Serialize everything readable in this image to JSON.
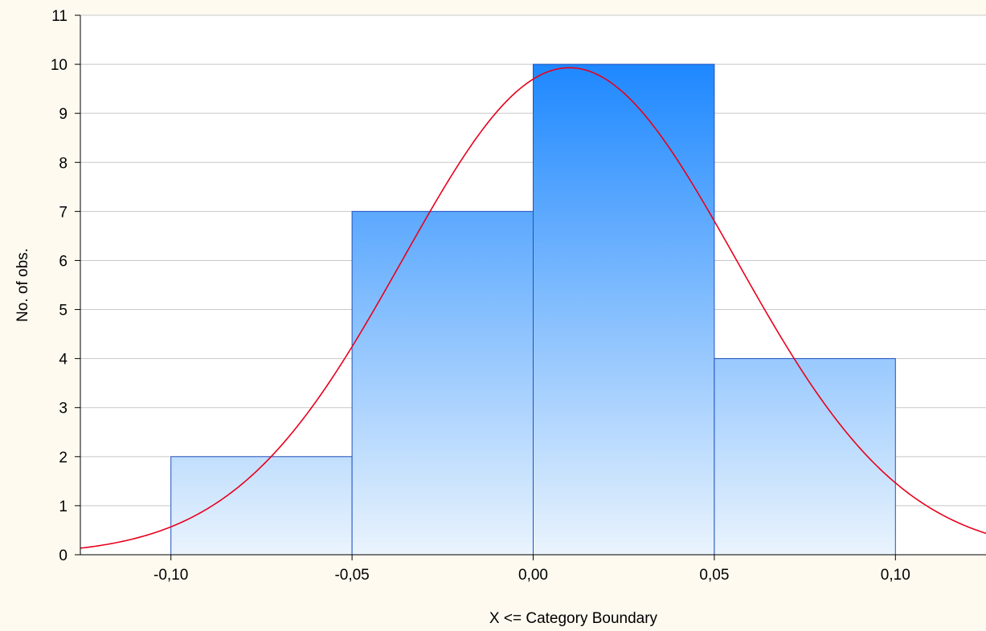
{
  "chart_data": {
    "type": "bar",
    "subtype": "histogram",
    "title": "",
    "xlabel": "X <= Category Boundary",
    "ylabel": "No. of obs.",
    "bins": [
      {
        "from": -0.1,
        "to": -0.05,
        "count": 2
      },
      {
        "from": -0.05,
        "to": 0.0,
        "count": 7
      },
      {
        "from": 0.0,
        "to": 0.05,
        "count": 10
      },
      {
        "from": 0.05,
        "to": 0.1,
        "count": 4
      }
    ],
    "xlim": [
      -0.125,
      0.125
    ],
    "ylim": [
      0,
      11
    ],
    "x_ticks": [
      -0.1,
      -0.05,
      0.0,
      0.05,
      0.1
    ],
    "x_tick_labels": [
      "-0,10",
      "-0,05",
      "0,00",
      "0,05",
      "0,10"
    ],
    "y_ticks": [
      0,
      1,
      2,
      3,
      4,
      5,
      6,
      7,
      8,
      9,
      10,
      11
    ],
    "y_tick_labels": [
      "0",
      "1",
      "2",
      "3",
      "4",
      "5",
      "6",
      "7",
      "8",
      "9",
      "10",
      "11"
    ],
    "grid": true,
    "normal_fit": {
      "mean": 0.01,
      "sd": 0.046,
      "peak": 9.93,
      "color": "#e8001c"
    },
    "colors": {
      "bar_top": "#1e88ff",
      "bar_bottom": "#eaf4fd",
      "bar_border": "#2050c0",
      "grid": "#c8c8c8",
      "background": "#fefaf0",
      "plot_background": "#ffffff"
    }
  }
}
